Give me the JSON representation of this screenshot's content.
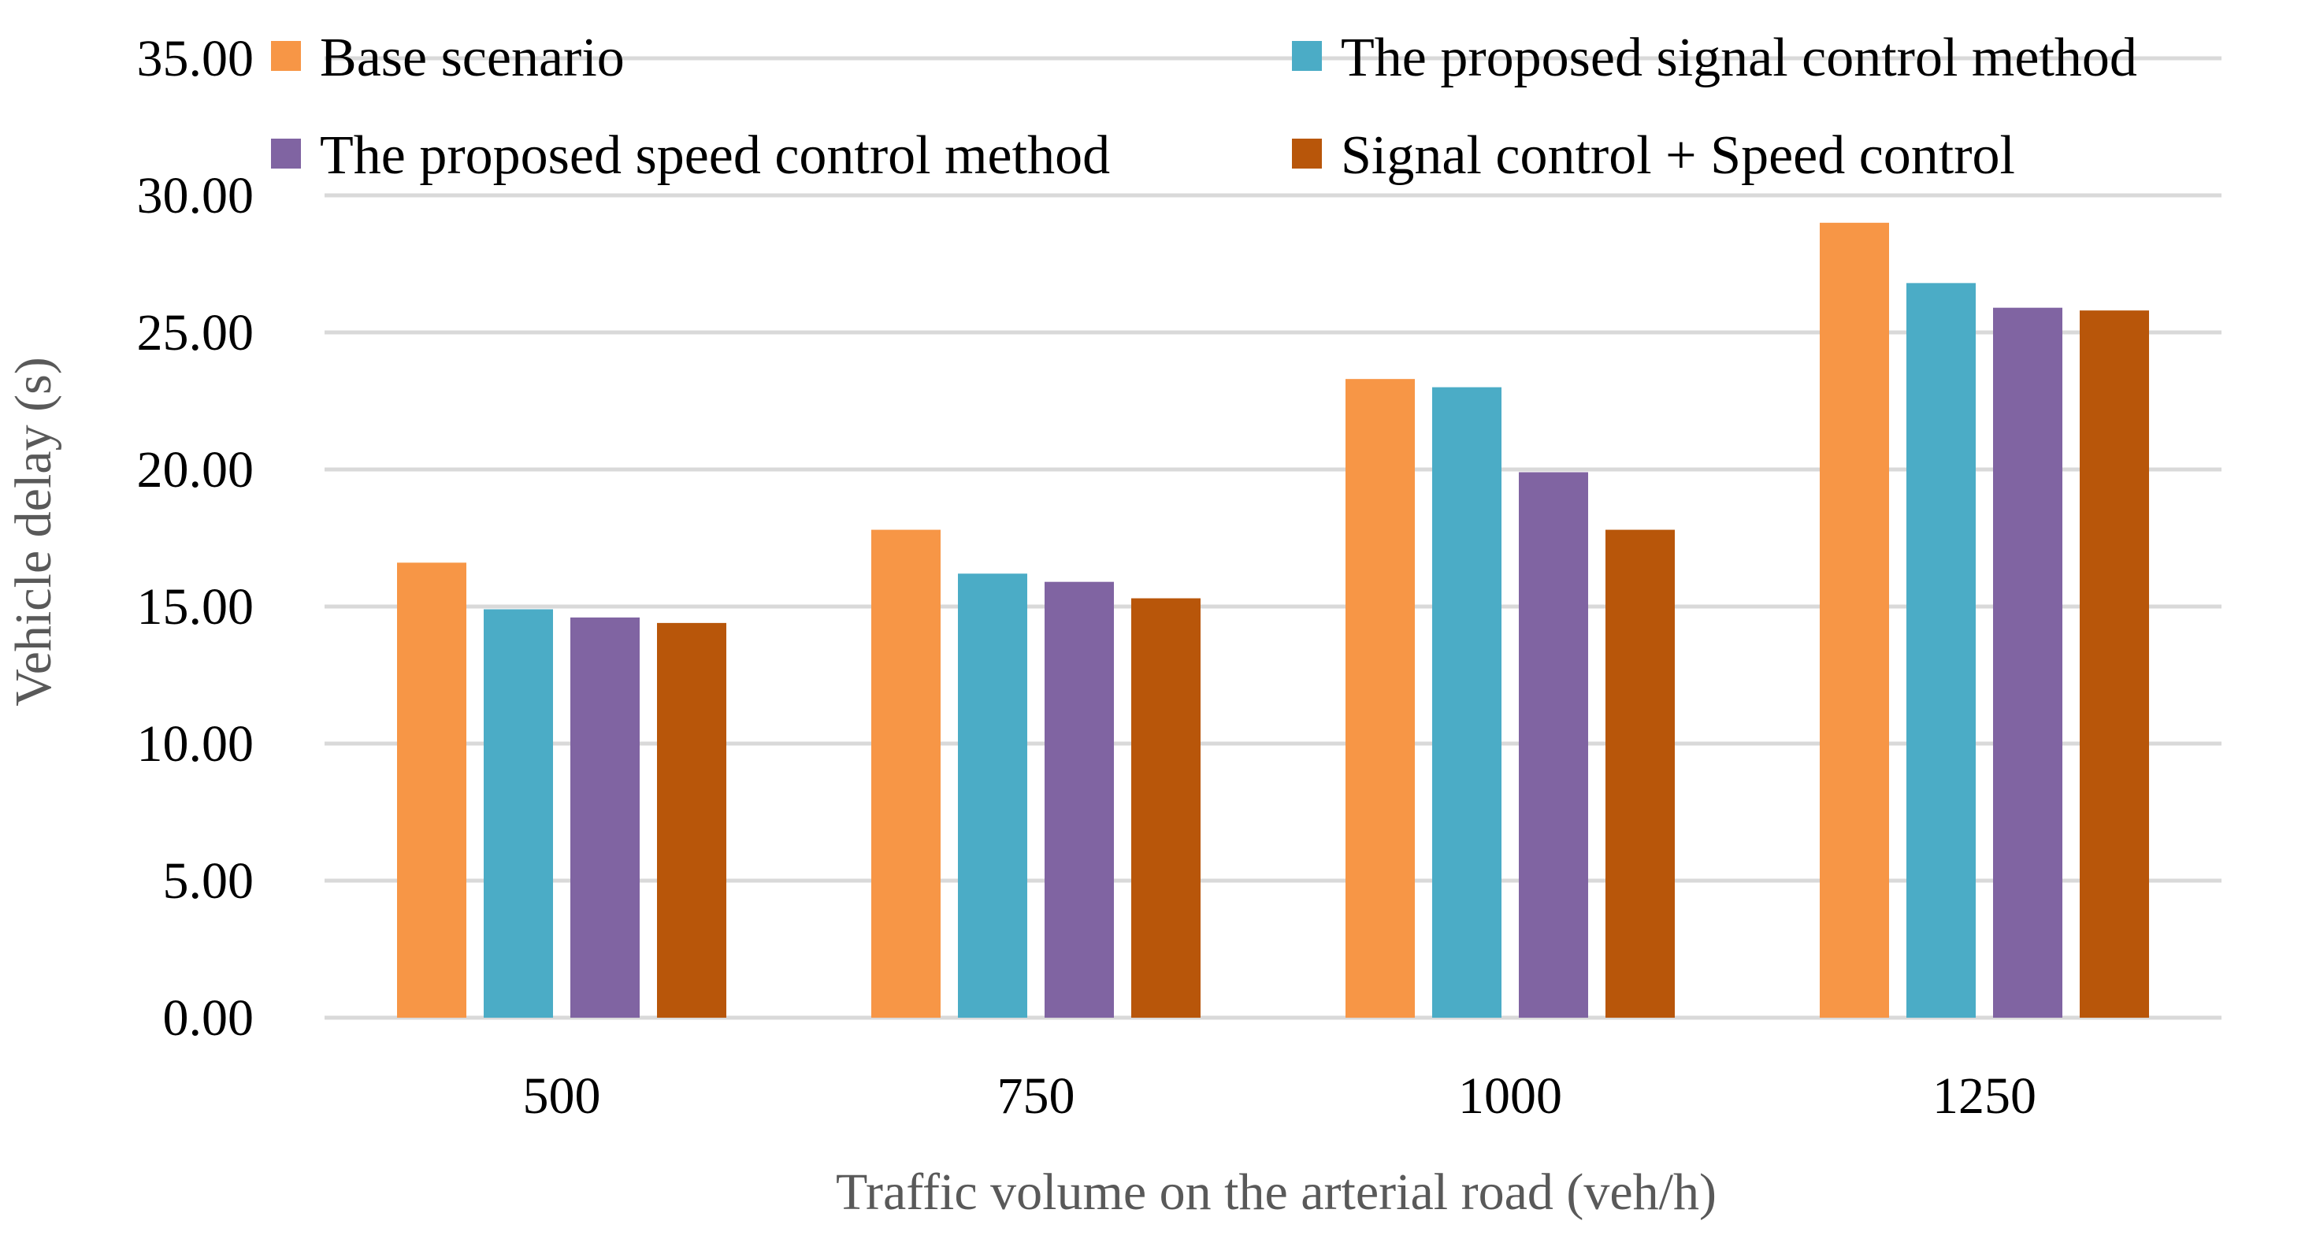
{
  "chart_data": {
    "type": "bar",
    "title": "",
    "xlabel": "Traffic volume on the arterial road (veh/h)",
    "ylabel": "Vehicle delay (s)",
    "categories": [
      "500",
      "750",
      "1000",
      "1250"
    ],
    "ylim": [
      0,
      35
    ],
    "ytick_step": 5,
    "ytick_labels": [
      "0.00",
      "5.00",
      "10.00",
      "15.00",
      "20.00",
      "25.00",
      "30.00",
      "35.00"
    ],
    "grid": true,
    "legend_position": "top",
    "series": [
      {
        "name": "Base scenario",
        "color": "#F79646",
        "values": [
          16.6,
          17.8,
          23.3,
          29.0
        ]
      },
      {
        "name": "The proposed signal control method",
        "color": "#4BACC6",
        "values": [
          14.9,
          16.2,
          23.0,
          26.8
        ]
      },
      {
        "name": "The proposed speed control method",
        "color": "#8064A2",
        "values": [
          14.6,
          15.9,
          19.9,
          25.9
        ]
      },
      {
        "name": "Signal control + Speed control",
        "color": "#B8560A",
        "values": [
          14.4,
          15.3,
          17.8,
          25.8
        ]
      }
    ],
    "colors": {
      "grid": "#D9D9D9",
      "tick_text": "#000000",
      "axis_title": "#595959"
    }
  }
}
